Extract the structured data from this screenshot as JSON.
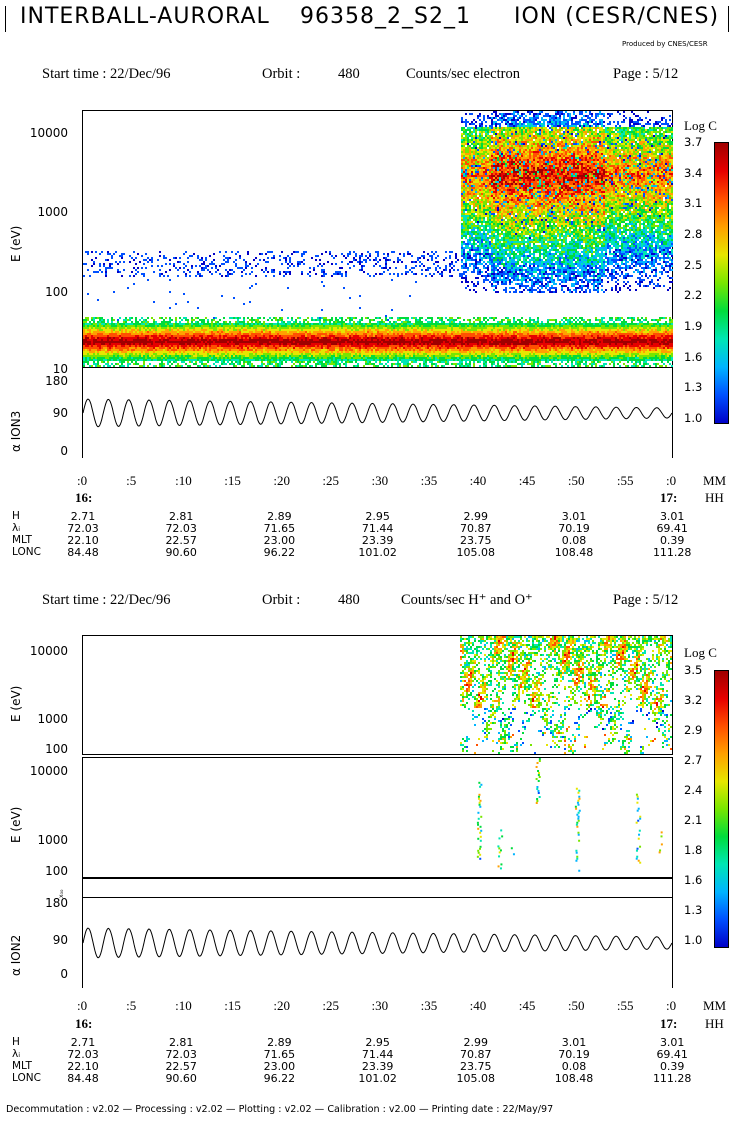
{
  "header": {
    "mission": "INTERBALL-AURORAL",
    "file_id": "96358_2_S2_1",
    "instrument": "ION (CESR/CNES)",
    "produced_by": "Produced by CNES/CESR"
  },
  "panel1": {
    "start_label": "Start time : 22/Dec/96",
    "orbit_label": "Orbit :",
    "orbit": "480",
    "product": "Counts/sec electron",
    "page": "Page : 5/12"
  },
  "panel2": {
    "start_label": "Start time : 22/Dec/96",
    "orbit_label": "Orbit :",
    "orbit": "480",
    "product": "Counts/sec H⁺ and O⁺",
    "page": "Page : 5/12"
  },
  "axes": {
    "e_label": "E (eV)",
    "alpha_label_1": "α ION3",
    "alpha_label_2": "α ION2",
    "ticks_x": [
      ":0",
      ":5",
      ":10",
      ":15",
      ":20",
      ":25",
      ":30",
      ":35",
      ":40",
      ":45",
      ":50",
      ":55",
      ":0"
    ],
    "mm_label": "MM",
    "hh_label_1": "HH",
    "hh_label_2": "HH",
    "start_hour": "16:",
    "end_hour": "17:",
    "e1_ticks": [
      "10000",
      "1000",
      "100",
      "10"
    ],
    "alpha_ticks": [
      "180",
      "90",
      "0"
    ],
    "e2_ticks": [
      "10000",
      "1000",
      "100"
    ],
    "e3_ticks": [
      "10000",
      "1000",
      "100"
    ],
    "mini_label": "x₀₀"
  },
  "colorbar1": {
    "title": "Log C",
    "ticks": [
      "3.7",
      "3.4",
      "3.1",
      "2.8",
      "2.5",
      "2.2",
      "1.9",
      "1.6",
      "1.3",
      "1.0"
    ]
  },
  "colorbar2": {
    "title": "Log C",
    "ticks": [
      "3.5",
      "3.2",
      "2.9",
      "2.7",
      "2.4",
      "2.1",
      "1.8",
      "1.6",
      "1.3",
      "1.0"
    ]
  },
  "ephemeris": {
    "row_labels": [
      "H",
      "λᵢ",
      "MLT",
      "LONC"
    ],
    "values": [
      [
        "2.71",
        "2.81",
        "2.89",
        "2.95",
        "2.99",
        "3.01",
        "3.01"
      ],
      [
        "72.03",
        "72.03",
        "71.65",
        "71.44",
        "70.87",
        "70.19",
        "69.41"
      ],
      [
        "22.10",
        "22.57",
        "23.00",
        "23.39",
        "23.75",
        "0.08",
        "0.39"
      ],
      [
        "84.48",
        "90.60",
        "96.22",
        "101.02",
        "105.08",
        "108.48",
        "111.28"
      ]
    ]
  },
  "footer": "Decommutation : v2.02 — Processing : v2.02 — Plotting : v2.02 — Calibration : v2.00 — Printing date : 22/May/97",
  "colors": {
    "scale": [
      "#0000c8",
      "#0050ff",
      "#00b4ff",
      "#00e6b4",
      "#00dc3c",
      "#78e600",
      "#e6e600",
      "#ffa000",
      "#ff5000",
      "#e60000",
      "#a00000"
    ]
  },
  "chart_data": [
    {
      "type": "heatmap",
      "title": "Counts/sec electron",
      "ylabel": "E (eV)",
      "yscale": "log",
      "ylim": [
        10,
        20000
      ],
      "x_unit": "minutes after 16:00, 22/Dec/96",
      "xlim": [
        0,
        60
      ],
      "zlabel": "Log C",
      "zlim": [
        1.0,
        3.7
      ],
      "features": [
        {
          "energy_band_eV": [
            15,
            40
          ],
          "time_min": [
            0,
            60
          ],
          "peak_log_c": 3.7
        },
        {
          "energy_band_eV": [
            150,
            350
          ],
          "time_min": [
            0,
            39
          ],
          "peak_log_c": 1.3
        },
        {
          "energy_band_eV": [
            100,
            20000
          ],
          "time_min": [
            39,
            60
          ],
          "peak_log_c": 3.5
        }
      ]
    },
    {
      "type": "line",
      "ylabel": "α ION3",
      "ylim": [
        0,
        180
      ],
      "xlim": [
        0,
        60
      ],
      "description_values": {
        "mean": 90,
        "amplitude_start": 28,
        "amplitude_end": 10,
        "cycles": 29
      }
    },
    {
      "type": "heatmap",
      "title": "Counts/sec H⁺ and O⁺",
      "ylabel": "E (eV)",
      "yscale": "log",
      "ylim": [
        100,
        20000
      ],
      "xlim": [
        0,
        60
      ],
      "zlabel": "Log C",
      "zlim": [
        1.0,
        3.5
      ],
      "features": [
        {
          "species": "H⁺",
          "energy_band_eV": [
            100,
            20000
          ],
          "time_min": [
            39,
            60
          ]
        },
        {
          "species": "O⁺",
          "energy_band_eV": [
            100,
            10000
          ],
          "time_min": [
            40,
            51
          ]
        }
      ]
    },
    {
      "type": "line",
      "ylabel": "α ION2",
      "ylim": [
        0,
        180
      ],
      "xlim": [
        0,
        60
      ],
      "description_values": {
        "mean": 90,
        "amplitude_start": 30,
        "amplitude_end": 12,
        "cycles": 29
      }
    }
  ]
}
